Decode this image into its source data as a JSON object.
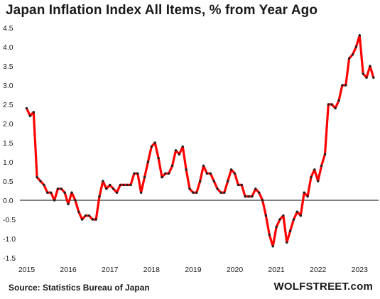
{
  "header": {
    "title": "Japan Inflation Index All Items, % from Year Ago"
  },
  "footer": {
    "source": "Source: Statistics Bureau of Japan",
    "brand": "WOLFSTREET.com"
  },
  "chart_data": {
    "type": "line",
    "title": "Japan Inflation Index All Items, % from Year Ago",
    "xlabel": "",
    "ylabel": "",
    "ylim": [
      -1.5,
      4.5
    ],
    "yticks": [
      "4.5",
      "4.0",
      "3.5",
      "3.0",
      "2.5",
      "2.0",
      "1.5",
      "1.0",
      "0.5",
      "0.0",
      "-0.5",
      "-1.0",
      "-1.5"
    ],
    "xticks": [
      "2015",
      "2016",
      "2017",
      "2018",
      "2019",
      "2020",
      "2021",
      "2022",
      "2023"
    ],
    "grid": false,
    "zero_line": true,
    "line_color": "#ff0000",
    "marker_color": "#222222",
    "series": [
      {
        "x": [
          "2015-01",
          "2015-02",
          "2015-03",
          "2015-04",
          "2015-05",
          "2015-06",
          "2015-07",
          "2015-08",
          "2015-09",
          "2015-10",
          "2015-11",
          "2015-12",
          "2016-01",
          "2016-02",
          "2016-03",
          "2016-04",
          "2016-05",
          "2016-06",
          "2016-07",
          "2016-08",
          "2016-09",
          "2016-10",
          "2016-11",
          "2016-12",
          "2017-01",
          "2017-02",
          "2017-03",
          "2017-04",
          "2017-05",
          "2017-06",
          "2017-07",
          "2017-08",
          "2017-09",
          "2017-10",
          "2017-11",
          "2017-12",
          "2018-01",
          "2018-02",
          "2018-03",
          "2018-04",
          "2018-05",
          "2018-06",
          "2018-07",
          "2018-08",
          "2018-09",
          "2018-10",
          "2018-11",
          "2018-12",
          "2019-01",
          "2019-02",
          "2019-03",
          "2019-04",
          "2019-05",
          "2019-06",
          "2019-07",
          "2019-08",
          "2019-09",
          "2019-10",
          "2019-11",
          "2019-12",
          "2020-01",
          "2020-02",
          "2020-03",
          "2020-04",
          "2020-05",
          "2020-06",
          "2020-07",
          "2020-08",
          "2020-09",
          "2020-10",
          "2020-11",
          "2020-12",
          "2021-01",
          "2021-02",
          "2021-03",
          "2021-04",
          "2021-05",
          "2021-06",
          "2021-07",
          "2021-08",
          "2021-09",
          "2021-10",
          "2021-11",
          "2021-12",
          "2022-01",
          "2022-02",
          "2022-03",
          "2022-04",
          "2022-05",
          "2022-06",
          "2022-07",
          "2022-08",
          "2022-09",
          "2022-10",
          "2022-11",
          "2022-12",
          "2023-01",
          "2023-02",
          "2023-03",
          "2023-04",
          "2023-05"
        ],
        "values": [
          2.4,
          2.2,
          2.3,
          0.6,
          0.5,
          0.4,
          0.2,
          0.2,
          0.0,
          0.3,
          0.3,
          0.2,
          -0.1,
          0.2,
          0.0,
          -0.3,
          -0.5,
          -0.4,
          -0.4,
          -0.5,
          -0.5,
          0.1,
          0.5,
          0.3,
          0.4,
          0.3,
          0.2,
          0.4,
          0.4,
          0.4,
          0.4,
          0.7,
          0.7,
          0.2,
          0.6,
          1.0,
          1.4,
          1.5,
          1.1,
          0.6,
          0.7,
          0.7,
          0.9,
          1.3,
          1.2,
          1.4,
          0.8,
          0.3,
          0.2,
          0.2,
          0.5,
          0.9,
          0.7,
          0.7,
          0.5,
          0.3,
          0.2,
          0.2,
          0.5,
          0.8,
          0.7,
          0.4,
          0.4,
          0.1,
          0.1,
          0.1,
          0.3,
          0.2,
          0.0,
          -0.4,
          -0.9,
          -1.2,
          -0.7,
          -0.5,
          -0.4,
          -1.1,
          -0.8,
          -0.5,
          -0.3,
          -0.4,
          0.2,
          0.1,
          0.6,
          0.8,
          0.5,
          0.9,
          1.2,
          2.5,
          2.5,
          2.4,
          2.6,
          3.0,
          3.0,
          3.7,
          3.8,
          4.0,
          4.3,
          3.3,
          3.2,
          3.5,
          3.2
        ]
      }
    ]
  }
}
